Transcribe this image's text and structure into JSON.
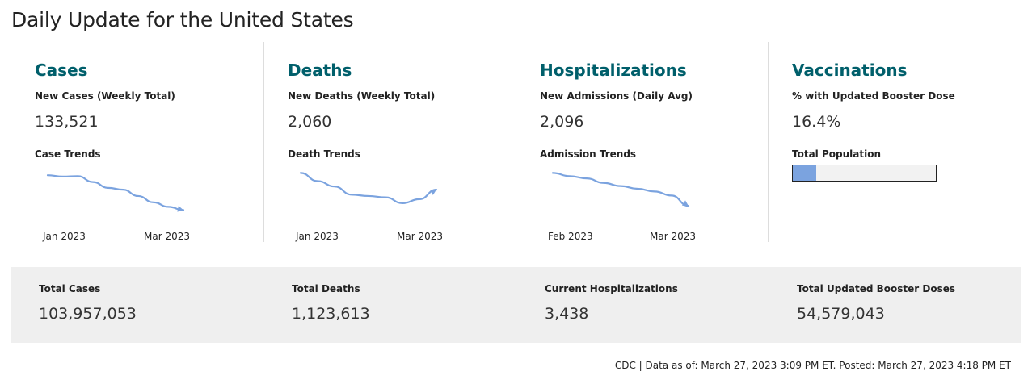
{
  "page": {
    "title": "Daily Update for the United States"
  },
  "colors": {
    "heading": "#005f6b",
    "line": "#7ba3df",
    "band": "#efefef"
  },
  "cards": [
    {
      "title": "Cases",
      "metric_label": "New Cases (Weekly Total)",
      "metric_value": "133,521",
      "trend_label": "Case Trends",
      "ticks": [
        "Jan 2023",
        "Mar 2023"
      ],
      "trend": [
        0.2,
        0.23,
        0.22,
        0.35,
        0.48,
        0.52,
        0.66,
        0.8,
        0.9,
        0.97
      ]
    },
    {
      "title": "Deaths",
      "metric_label": "New Deaths (Weekly Total)",
      "metric_value": "2,060",
      "trend_label": "Death Trends",
      "ticks": [
        "Jan 2023",
        "Mar 2023"
      ],
      "trend": [
        0.15,
        0.33,
        0.45,
        0.63,
        0.66,
        0.69,
        0.82,
        0.73,
        0.52
      ]
    },
    {
      "title": "Hospitalizations",
      "metric_label": "New Admissions (Daily Avg)",
      "metric_value": "2,096",
      "trend_label": "Admission Trends",
      "ticks": [
        "Feb 2023",
        "Mar 2023"
      ],
      "trend": [
        0.15,
        0.22,
        0.27,
        0.37,
        0.44,
        0.5,
        0.56,
        0.65,
        0.88
      ]
    },
    {
      "title": "Vaccinations",
      "metric_label": "% with Updated Booster Dose",
      "metric_value": "16.4%",
      "trend_label": "Total Population",
      "population_fraction": 0.164
    }
  ],
  "totals": [
    {
      "label": "Total Cases",
      "value": "103,957,053"
    },
    {
      "label": "Total Deaths",
      "value": "1,123,613"
    },
    {
      "label": "Current Hospitalizations",
      "value": "3,438"
    },
    {
      "label": "Total Updated Booster Doses",
      "value": "54,579,043"
    }
  ],
  "footer": {
    "text": "CDC | Data as of: March 27, 2023 3:09 PM ET. Posted: March 27, 2023 4:18 PM ET"
  }
}
